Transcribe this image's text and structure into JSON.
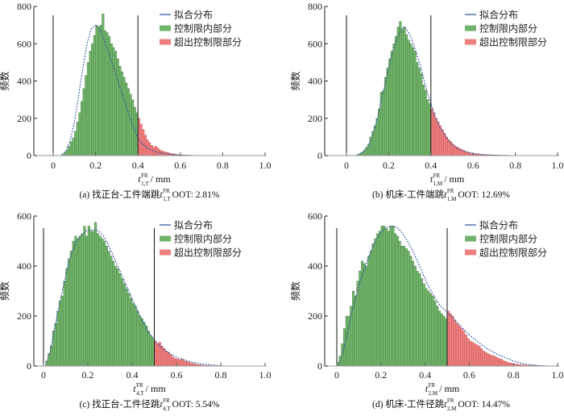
{
  "colors": {
    "in_limit": "#72b36b",
    "in_limit_stroke": "#3f7a3a",
    "out_limit": "#ef7f7f",
    "out_limit_stroke": "#b84a4a",
    "fit_line": "#2b4fa0",
    "limit_line": "#111111"
  },
  "legend": [
    "拟合分布",
    "控制限内部分",
    "超出控制限部分"
  ],
  "chart_data": [
    {
      "type": "bar",
      "id": "a",
      "caption_prefix": "(a)  找正台-工件端跳 ",
      "caption_var": "t",
      "caption_sup": "FR",
      "caption_sub": "1,T",
      "caption_suffix": " OOT: 2.81%",
      "xlabel_var": "t",
      "xlabel_sup": "FR",
      "xlabel_sub": "1,T",
      "xlabel_unit": "/ mm",
      "ylabel": "频数",
      "xlim": [
        -0.17,
        1.0
      ],
      "ylim": [
        0,
        800
      ],
      "xticks": [
        "0",
        "0.2",
        "0.4",
        "0.6",
        "0.8",
        "1.0"
      ],
      "xtick_values": [
        0,
        0.2,
        0.4,
        0.6,
        0.8,
        1.0
      ],
      "yticks": [
        "0",
        "200",
        "400",
        "600",
        "800"
      ],
      "ytick_values": [
        0,
        200,
        400,
        600,
        800
      ],
      "control_limits": [
        0,
        0.4
      ],
      "bin_start": 0.04,
      "bin_width": 0.01,
      "values": [
        5,
        15,
        30,
        50,
        75,
        95,
        130,
        180,
        230,
        290,
        360,
        430,
        500,
        560,
        600,
        645,
        700,
        690,
        700,
        760,
        670,
        660,
        640,
        600,
        580,
        560,
        520,
        480,
        450,
        420,
        390,
        360,
        330,
        300,
        260,
        230,
        200,
        170,
        140,
        110,
        85,
        70,
        55,
        45,
        50,
        40,
        30,
        25,
        20,
        18,
        15,
        12,
        10,
        8,
        6,
        5,
        4,
        3,
        3,
        2,
        2,
        1,
        1,
        1,
        1,
        1
      ],
      "fit": [
        [
          0.04,
          5
        ],
        [
          0.06,
          25
        ],
        [
          0.08,
          80
        ],
        [
          0.1,
          180
        ],
        [
          0.12,
          320
        ],
        [
          0.14,
          470
        ],
        [
          0.16,
          600
        ],
        [
          0.18,
          680
        ],
        [
          0.2,
          700
        ],
        [
          0.22,
          680
        ],
        [
          0.24,
          620
        ],
        [
          0.26,
          560
        ],
        [
          0.28,
          490
        ],
        [
          0.3,
          420
        ],
        [
          0.32,
          350
        ],
        [
          0.34,
          280
        ],
        [
          0.36,
          210
        ],
        [
          0.38,
          150
        ],
        [
          0.4,
          95
        ],
        [
          0.42,
          65
        ],
        [
          0.44,
          45
        ],
        [
          0.46,
          32
        ],
        [
          0.48,
          22
        ],
        [
          0.5,
          15
        ],
        [
          0.55,
          7
        ],
        [
          0.6,
          3
        ],
        [
          0.65,
          1
        ],
        [
          0.7,
          0
        ]
      ]
    },
    {
      "type": "bar",
      "id": "b",
      "caption_prefix": "(b)  机床-工件端跳 ",
      "caption_var": "t",
      "caption_sup": "FR",
      "caption_sub": "1,M",
      "caption_suffix": " OOT: 12.69%",
      "xlabel_var": "t",
      "xlabel_sup": "FR",
      "xlabel_sub": "1,M",
      "xlabel_unit": "/ mm",
      "ylabel": "频数",
      "xlim": [
        -0.1,
        1.0
      ],
      "ylim": [
        0,
        800
      ],
      "xticks": [
        "0",
        "0.2",
        "0.4",
        "0.6",
        "0.8",
        "1.0"
      ],
      "xtick_values": [
        0,
        0.2,
        0.4,
        0.6,
        0.8,
        1.0
      ],
      "yticks": [
        "0",
        "200",
        "400",
        "600",
        "800"
      ],
      "ytick_values": [
        0,
        200,
        400,
        600,
        800
      ],
      "control_limits": [
        0,
        0.4
      ],
      "bin_start": 0.05,
      "bin_width": 0.01,
      "values": [
        5,
        10,
        18,
        30,
        45,
        60,
        100,
        130,
        160,
        200,
        250,
        340,
        350,
        420,
        470,
        520,
        560,
        600,
        640,
        690,
        720,
        680,
        690,
        650,
        620,
        600,
        580,
        560,
        500,
        470,
        440,
        380,
        350,
        300,
        280,
        250,
        230,
        200,
        180,
        160,
        140,
        120,
        100,
        85,
        75,
        62,
        52,
        45,
        40,
        33,
        28,
        22,
        18,
        15,
        12,
        10,
        10,
        8,
        7,
        6,
        6,
        5,
        5,
        4,
        4,
        3,
        3,
        3,
        2,
        2,
        2,
        2,
        1,
        1,
        1,
        1,
        1,
        1,
        1,
        1
      ],
      "fit": [
        [
          0.05,
          3
        ],
        [
          0.08,
          20
        ],
        [
          0.1,
          45
        ],
        [
          0.12,
          100
        ],
        [
          0.14,
          170
        ],
        [
          0.16,
          270
        ],
        [
          0.18,
          370
        ],
        [
          0.2,
          470
        ],
        [
          0.22,
          560
        ],
        [
          0.24,
          630
        ],
        [
          0.26,
          675
        ],
        [
          0.27,
          690
        ],
        [
          0.28,
          685
        ],
        [
          0.3,
          650
        ],
        [
          0.32,
          590
        ],
        [
          0.34,
          520
        ],
        [
          0.36,
          440
        ],
        [
          0.38,
          350
        ],
        [
          0.4,
          280
        ],
        [
          0.42,
          210
        ],
        [
          0.44,
          160
        ],
        [
          0.46,
          120
        ],
        [
          0.48,
          85
        ],
        [
          0.5,
          60
        ],
        [
          0.52,
          42
        ],
        [
          0.55,
          25
        ],
        [
          0.6,
          12
        ],
        [
          0.65,
          5
        ],
        [
          0.7,
          2
        ],
        [
          0.8,
          0
        ]
      ]
    },
    {
      "type": "bar",
      "id": "c",
      "caption_prefix": "(c)  找正台-工件径跳 ",
      "caption_var": "t",
      "caption_sup": "FR",
      "caption_sub": "4,T",
      "caption_suffix": " OOT: 5.54%",
      "xlabel_var": "t",
      "xlabel_sup": "FR",
      "xlabel_sub": "4,T",
      "xlabel_unit": "/ mm",
      "ylabel": "频数",
      "xlim": [
        -0.045,
        1.0
      ],
      "ylim": [
        0,
        600
      ],
      "xticks": [
        "0",
        "0.2",
        "0.4",
        "0.6",
        "0.8",
        "1.0"
      ],
      "xtick_values": [
        0,
        0.2,
        0.4,
        0.6,
        0.8,
        1.0
      ],
      "yticks": [
        "0",
        "200",
        "400",
        "600"
      ],
      "ytick_values": [
        0,
        200,
        400,
        600
      ],
      "control_limits": [
        0,
        0.5
      ],
      "bin_start": 0.01,
      "bin_width": 0.01,
      "values": [
        20,
        50,
        80,
        140,
        170,
        220,
        260,
        280,
        340,
        390,
        430,
        460,
        500,
        520,
        510,
        520,
        530,
        560,
        520,
        560,
        540,
        540,
        575,
        530,
        520,
        510,
        500,
        480,
        460,
        440,
        420,
        400,
        390,
        370,
        350,
        330,
        310,
        290,
        270,
        250,
        240,
        220,
        200,
        190,
        175,
        160,
        140,
        120,
        110,
        100,
        90,
        95,
        80,
        70,
        60,
        55,
        45,
        35,
        30,
        28,
        25,
        28,
        20,
        18,
        15,
        12,
        10,
        8,
        6,
        5,
        4,
        3,
        2,
        2,
        1,
        1,
        1,
        1,
        1,
        1
      ],
      "fit": [
        [
          0.01,
          5
        ],
        [
          0.03,
          60
        ],
        [
          0.05,
          150
        ],
        [
          0.07,
          240
        ],
        [
          0.09,
          320
        ],
        [
          0.11,
          400
        ],
        [
          0.13,
          460
        ],
        [
          0.15,
          500
        ],
        [
          0.17,
          525
        ],
        [
          0.19,
          540
        ],
        [
          0.21,
          545
        ],
        [
          0.23,
          545
        ],
        [
          0.25,
          540
        ],
        [
          0.27,
          520
        ],
        [
          0.29,
          490
        ],
        [
          0.31,
          450
        ],
        [
          0.33,
          410
        ],
        [
          0.35,
          370
        ],
        [
          0.37,
          330
        ],
        [
          0.39,
          290
        ],
        [
          0.41,
          250
        ],
        [
          0.43,
          210
        ],
        [
          0.45,
          175
        ],
        [
          0.47,
          140
        ],
        [
          0.5,
          105
        ],
        [
          0.53,
          75
        ],
        [
          0.56,
          55
        ],
        [
          0.6,
          35
        ],
        [
          0.65,
          20
        ],
        [
          0.7,
          10
        ],
        [
          0.75,
          5
        ],
        [
          0.8,
          1
        ]
      ]
    },
    {
      "type": "bar",
      "id": "d",
      "caption_prefix": "(d)  机床-工件径跳 ",
      "caption_var": "t",
      "caption_sup": "FR",
      "caption_sub": "2,M",
      "caption_suffix": " OOT: 14.47%",
      "xlabel_var": "t",
      "xlabel_sup": "FR",
      "xlabel_sub": "2,M",
      "xlabel_unit": "/ mm",
      "ylabel": "频数",
      "xlim": [
        -0.055,
        1.0
      ],
      "ylim": [
        0,
        600
      ],
      "xticks": [
        "0",
        "0.2",
        "0.4",
        "0.6",
        "0.8",
        "1.0"
      ],
      "xtick_values": [
        0,
        0.2,
        0.4,
        0.6,
        0.8,
        1.0
      ],
      "yticks": [
        "0",
        "200",
        "400",
        "600"
      ],
      "ytick_values": [
        0,
        200,
        400,
        600
      ],
      "control_limits": [
        0,
        0.5
      ],
      "bin_start": 0.0,
      "bin_width": 0.01,
      "values": [
        15,
        40,
        90,
        150,
        200,
        200,
        240,
        300,
        280,
        340,
        380,
        420,
        410,
        400,
        440,
        460,
        490,
        510,
        530,
        540,
        560,
        560,
        550,
        540,
        560,
        560,
        530,
        520,
        500,
        480,
        480,
        470,
        460,
        440,
        420,
        400,
        380,
        370,
        350,
        330,
        310,
        300,
        290,
        280,
        260,
        240,
        220,
        210,
        200,
        190,
        220,
        210,
        200,
        185,
        170,
        160,
        150,
        140,
        125,
        110,
        100,
        95,
        90,
        85,
        80,
        70,
        60,
        55,
        50,
        45,
        42,
        40,
        35,
        30,
        28,
        22,
        18,
        15,
        12,
        10,
        8,
        8,
        6,
        5,
        4,
        4,
        3,
        3,
        2,
        2,
        2,
        1,
        1,
        1,
        1,
        1
      ],
      "fit": [
        [
          0.01,
          5
        ],
        [
          0.03,
          60
        ],
        [
          0.05,
          140
        ],
        [
          0.07,
          220
        ],
        [
          0.09,
          290
        ],
        [
          0.11,
          350
        ],
        [
          0.13,
          400
        ],
        [
          0.15,
          450
        ],
        [
          0.17,
          490
        ],
        [
          0.19,
          520
        ],
        [
          0.21,
          545
        ],
        [
          0.23,
          555
        ],
        [
          0.25,
          560
        ],
        [
          0.27,
          555
        ],
        [
          0.29,
          540
        ],
        [
          0.31,
          515
        ],
        [
          0.33,
          485
        ],
        [
          0.35,
          450
        ],
        [
          0.37,
          410
        ],
        [
          0.39,
          370
        ],
        [
          0.41,
          330
        ],
        [
          0.43,
          295
        ],
        [
          0.45,
          265
        ],
        [
          0.47,
          240
        ],
        [
          0.5,
          215
        ],
        [
          0.53,
          190
        ],
        [
          0.56,
          160
        ],
        [
          0.6,
          125
        ],
        [
          0.64,
          95
        ],
        [
          0.68,
          70
        ],
        [
          0.72,
          50
        ],
        [
          0.76,
          35
        ],
        [
          0.8,
          20
        ],
        [
          0.85,
          8
        ],
        [
          0.9,
          3
        ],
        [
          0.95,
          1
        ]
      ]
    }
  ]
}
